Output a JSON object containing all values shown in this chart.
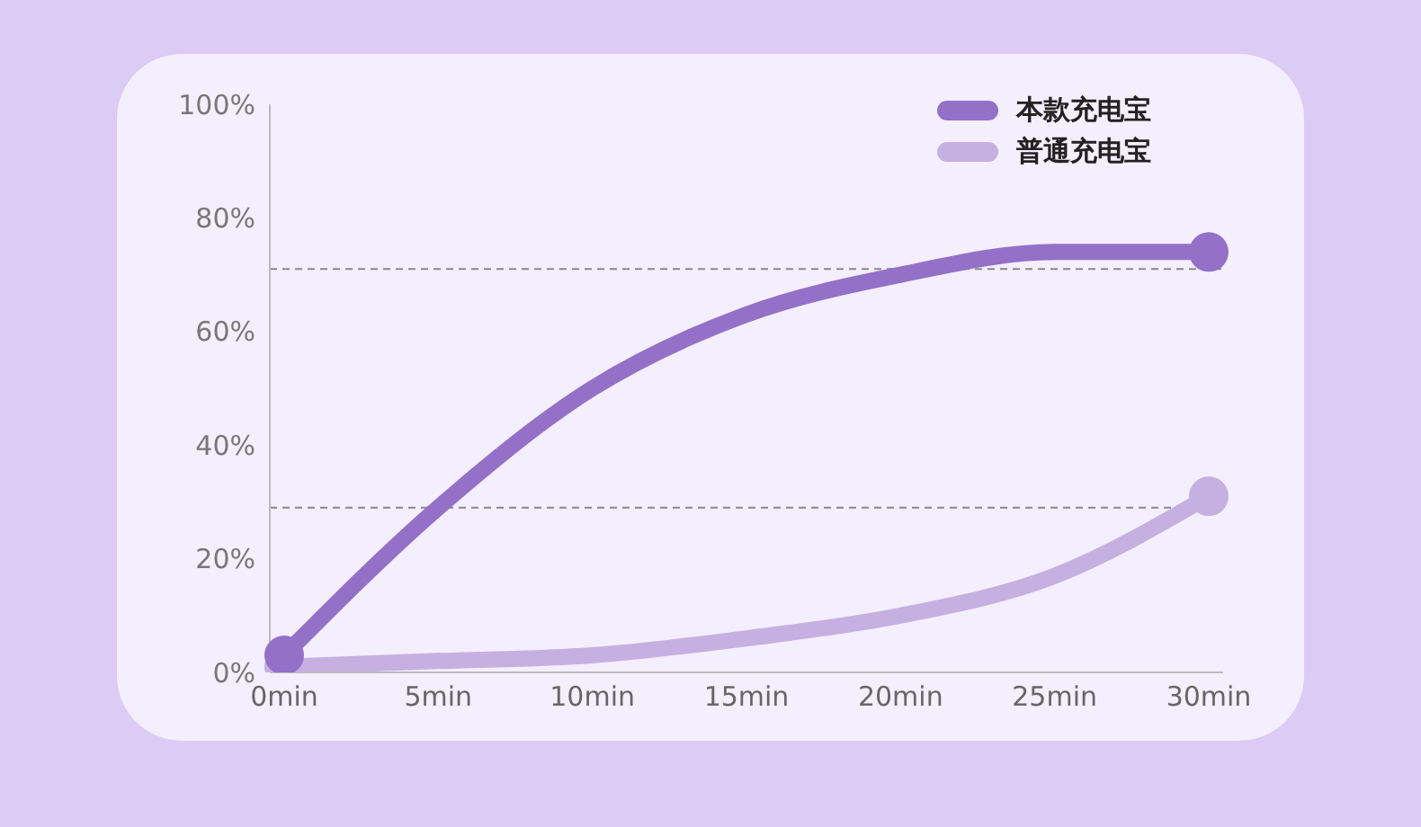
{
  "chart_data": {
    "type": "line",
    "categories": [
      "0min",
      "5min",
      "10min",
      "15min",
      "20min",
      "25min",
      "30min"
    ],
    "series": [
      {
        "name": "本款充电宝",
        "color": "#9470c8",
        "values": [
          3,
          29,
          50,
          63,
          70,
          74,
          74
        ]
      },
      {
        "name": "普通充电宝",
        "color": "#c6b0e2",
        "values": [
          1,
          2,
          3,
          6,
          10,
          17,
          31
        ]
      }
    ],
    "ylim": [
      0,
      100
    ],
    "yticks": [
      {
        "value": 0,
        "label": "0%"
      },
      {
        "value": 20,
        "label": "20%"
      },
      {
        "value": 40,
        "label": "40%"
      },
      {
        "value": 60,
        "label": "60%"
      },
      {
        "value": 80,
        "label": "80%"
      },
      {
        "value": 100,
        "label": "100%"
      }
    ],
    "ref_lines": [
      {
        "axis": "y",
        "value": 71,
        "color": "#888888",
        "line_style": "dashed"
      },
      {
        "axis": "y",
        "value": 29,
        "color": "#888888",
        "line_style": "dashed"
      }
    ],
    "grid": false,
    "legend": "top right",
    "line_style": "solid"
  }
}
